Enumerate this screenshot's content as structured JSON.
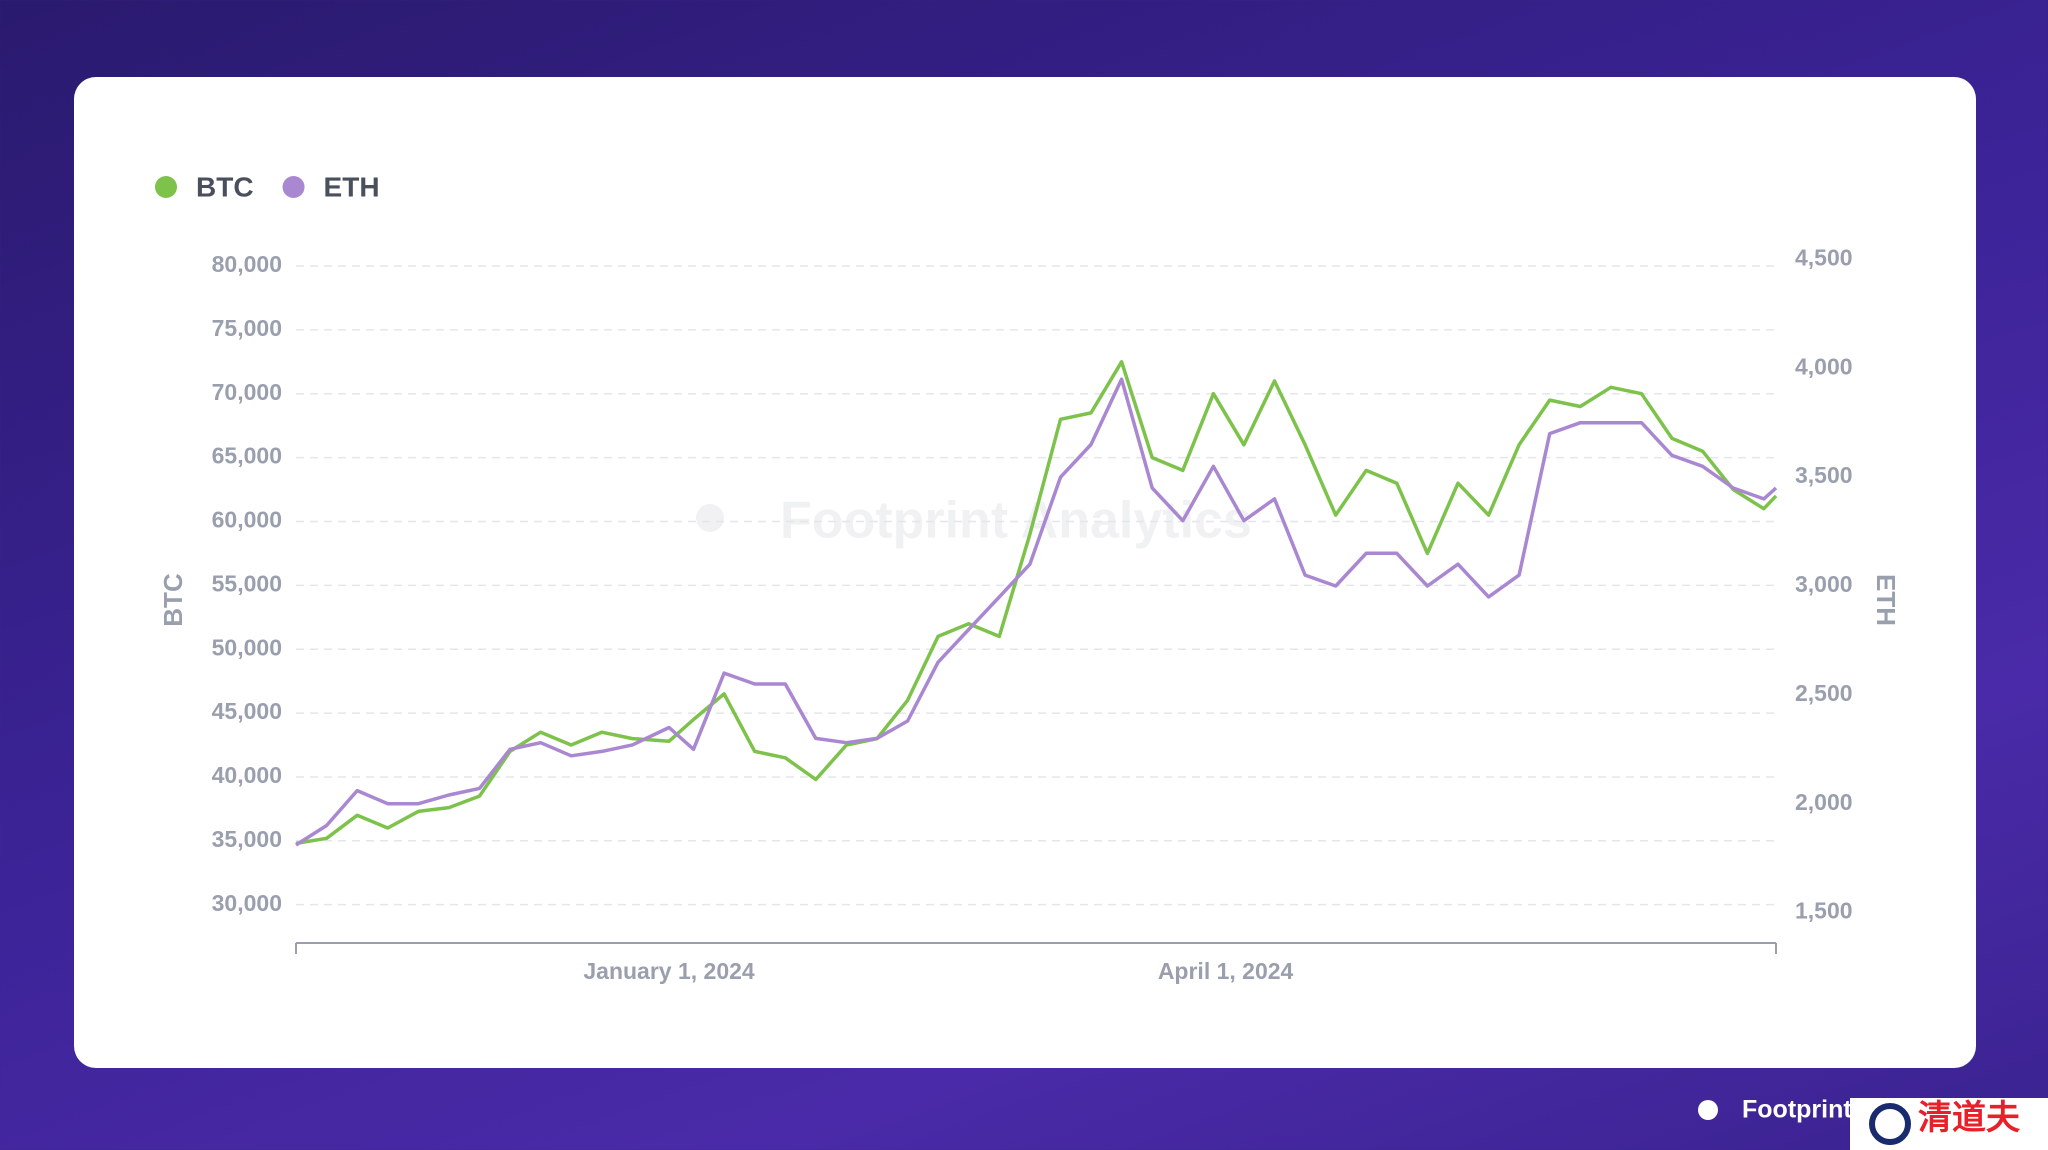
{
  "chart_data": {
    "type": "line",
    "watermark": "Footprint Analytics",
    "x": [
      "2023-11-01",
      "2023-11-06",
      "2023-11-11",
      "2023-11-16",
      "2023-11-21",
      "2023-11-26",
      "2023-12-01",
      "2023-12-06",
      "2023-12-11",
      "2023-12-16",
      "2023-12-21",
      "2023-12-26",
      "2024-01-01",
      "2024-01-05",
      "2024-01-10",
      "2024-01-15",
      "2024-01-20",
      "2024-01-25",
      "2024-01-30",
      "2024-02-04",
      "2024-02-09",
      "2024-02-14",
      "2024-02-19",
      "2024-02-24",
      "2024-02-29",
      "2024-03-05",
      "2024-03-10",
      "2024-03-15",
      "2024-03-20",
      "2024-03-25",
      "2024-03-30",
      "2024-04-04",
      "2024-04-09",
      "2024-04-14",
      "2024-04-19",
      "2024-04-24",
      "2024-04-29",
      "2024-05-04",
      "2024-05-09",
      "2024-05-14",
      "2024-05-19",
      "2024-05-24",
      "2024-05-29",
      "2024-06-03",
      "2024-06-08",
      "2024-06-13",
      "2024-06-18",
      "2024-06-23",
      "2024-06-28",
      "2024-06-30"
    ],
    "xlim": [
      "2023-11-01",
      "2024-06-30"
    ],
    "xticks": [
      {
        "value": "2024-01-01",
        "label": "January 1, 2024"
      },
      {
        "value": "2024-04-01",
        "label": "April 1, 2024"
      }
    ],
    "ylabel": "BTC",
    "y2label": "ETH",
    "ylim": [
      27000,
      80000
    ],
    "yticks": [
      {
        "value": 30000,
        "label": "30,000"
      },
      {
        "value": 35000,
        "label": "35,000"
      },
      {
        "value": 40000,
        "label": "40,000"
      },
      {
        "value": 45000,
        "label": "45,000"
      },
      {
        "value": 50000,
        "label": "50,000"
      },
      {
        "value": 55000,
        "label": "55,000"
      },
      {
        "value": 60000,
        "label": "60,000"
      },
      {
        "value": 65000,
        "label": "65,000"
      },
      {
        "value": 70000,
        "label": "70,000"
      },
      {
        "value": 75000,
        "label": "75,000"
      },
      {
        "value": 80000,
        "label": "80,000"
      }
    ],
    "y2lim": [
      1360,
      4470
    ],
    "y2ticks": [
      {
        "value": 1500,
        "label": "1,500"
      },
      {
        "value": 2000,
        "label": "2,000"
      },
      {
        "value": 2500,
        "label": "2,500"
      },
      {
        "value": 3000,
        "label": "3,000"
      },
      {
        "value": 3500,
        "label": "3,500"
      },
      {
        "value": 4000,
        "label": "4,000"
      },
      {
        "value": 4500,
        "label": "4,500"
      }
    ],
    "grid": true,
    "legend": "top-left",
    "series": [
      {
        "name": "BTC",
        "color": "#7dc24b",
        "values": [
          34800,
          35200,
          37000,
          36000,
          37300,
          37600,
          38500,
          42000,
          43500,
          42500,
          43500,
          43000,
          42800,
          44500,
          46500,
          42000,
          41500,
          39800,
          42500,
          43000,
          46000,
          51000,
          52000,
          51000,
          59000,
          68000,
          68500,
          72500,
          65000,
          64000,
          70000,
          66000,
          71000,
          66000,
          60500,
          64000,
          63000,
          57500,
          63000,
          60500,
          66000,
          69500,
          69000,
          70500,
          70000,
          66500,
          65500,
          62500,
          61000,
          62000
        ]
      },
      {
        "name": "ETH",
        "color": "#a987d1",
        "axis": "y2",
        "values": [
          1810,
          1900,
          2060,
          2000,
          2000,
          2040,
          2070,
          2250,
          2280,
          2220,
          2240,
          2270,
          2350,
          2250,
          2600,
          2550,
          2550,
          2300,
          2280,
          2300,
          2380,
          2650,
          2800,
          2950,
          3100,
          3500,
          3650,
          3950,
          3450,
          3300,
          3550,
          3300,
          3400,
          3050,
          3000,
          3150,
          3150,
          3000,
          3100,
          2950,
          3050,
          3700,
          3750,
          3750,
          3750,
          3600,
          3550,
          3450,
          3400,
          3450
        ]
      }
    ]
  },
  "footer": {
    "brand": "Footprint",
    "badge": "清道夫"
  }
}
